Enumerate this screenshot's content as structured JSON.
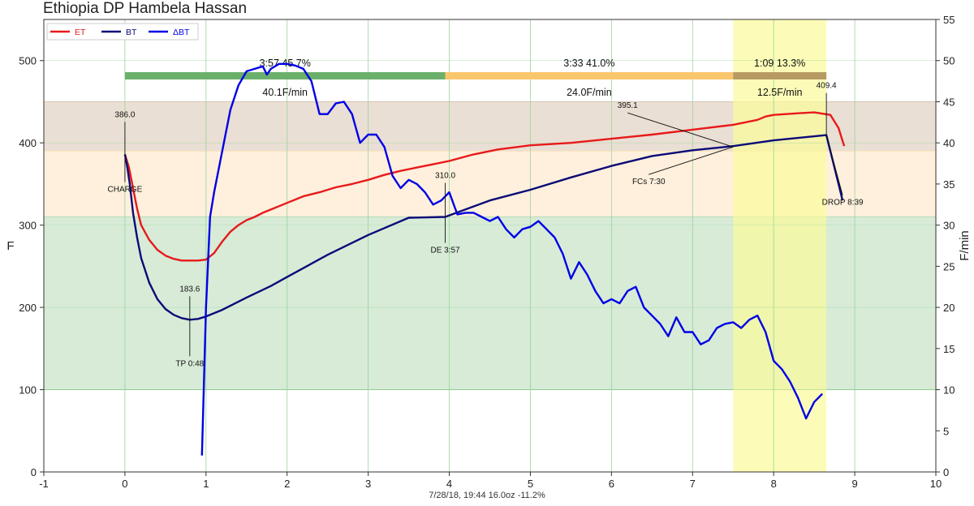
{
  "title": "Ethiopia DP Hambela Hassan",
  "subtitle": "7/28/18, 19:44   16.0oz   -11.2%",
  "colors": {
    "et": "#e8191b",
    "bt": "#0a0a78",
    "dbt": "#0000e6",
    "zone_top": "#d8c4b0",
    "zone_mid": "#fde3bf",
    "zone_low": "#b6dbb6",
    "phase_dry": "#6ab06a",
    "phase_mid": "#f9c66b",
    "phase_dev": "#b79a63",
    "dev_highlight": "#fbfb9a"
  },
  "chart_data": {
    "type": "line",
    "title": "Ethiopia DP Hambela Hassan",
    "xlabel": "",
    "ylabel": "F",
    "y2label": "F/min",
    "xlim": [
      -1,
      10
    ],
    "ylim": [
      0,
      550
    ],
    "y2lim": [
      0,
      55
    ],
    "xticks": [
      "-1",
      "0",
      "1",
      "2",
      "3",
      "4",
      "5",
      "6",
      "7",
      "8",
      "9",
      "10"
    ],
    "yticks": [
      "0",
      "100",
      "200",
      "300",
      "400",
      "500"
    ],
    "y2ticks": [
      "0",
      "5",
      "10",
      "15",
      "20",
      "25",
      "30",
      "35",
      "40",
      "45",
      "50",
      "55"
    ],
    "grid": true,
    "legend_position": "top-left",
    "legend": [
      "ET",
      "BT",
      "ΔBT"
    ],
    "zones": [
      {
        "from": 390,
        "to": 450,
        "color": "zone_top"
      },
      {
        "from": 310,
        "to": 390,
        "color": "zone_mid"
      },
      {
        "from": 100,
        "to": 310,
        "color": "zone_low"
      }
    ],
    "development_window": [
      7.5,
      8.65
    ],
    "series": [
      {
        "name": "ET",
        "axis": "left",
        "x": [
          0,
          0.05,
          0.1,
          0.15,
          0.2,
          0.3,
          0.4,
          0.5,
          0.6,
          0.7,
          0.8,
          0.9,
          1.0,
          1.1,
          1.2,
          1.3,
          1.4,
          1.5,
          1.6,
          1.7,
          1.8,
          1.9,
          2.0,
          2.2,
          2.4,
          2.6,
          2.8,
          3.0,
          3.2,
          3.4,
          3.6,
          3.8,
          4.0,
          4.3,
          4.6,
          5.0,
          5.5,
          6.0,
          6.5,
          7.0,
          7.5,
          7.8,
          7.9,
          8.0,
          8.3,
          8.5,
          8.7,
          8.8,
          8.87
        ],
        "values": [
          386,
          370,
          345,
          320,
          300,
          282,
          270,
          263,
          259,
          257,
          257,
          257,
          258,
          266,
          280,
          292,
          300,
          306,
          310,
          315,
          319,
          323,
          327,
          335,
          340,
          346,
          350,
          355,
          361,
          366,
          370,
          374,
          378,
          386,
          392,
          397,
          400,
          405,
          410,
          416,
          422,
          428,
          432,
          434,
          436,
          437,
          434,
          418,
          396
        ]
      },
      {
        "name": "BT",
        "axis": "left",
        "x": [
          0,
          0.03,
          0.06,
          0.1,
          0.15,
          0.2,
          0.3,
          0.4,
          0.5,
          0.6,
          0.7,
          0.8,
          0.9,
          1.0,
          1.2,
          1.5,
          1.8,
          2.0,
          2.5,
          3.0,
          3.5,
          3.95,
          4.5,
          5.0,
          5.5,
          6.0,
          6.5,
          7.0,
          7.5,
          8.0,
          8.3,
          8.65,
          8.75,
          8.85
        ],
        "values": [
          386,
          370,
          350,
          315,
          285,
          260,
          230,
          210,
          198,
          191,
          187,
          185,
          186,
          189,
          197,
          212,
          226,
          237,
          264,
          288,
          309,
          310,
          330,
          343,
          358,
          372,
          384,
          391,
          396,
          403,
          406,
          409.4,
          370,
          330
        ]
      },
      {
        "name": "ΔBT",
        "axis": "right",
        "x": [
          0.95,
          1.0,
          1.05,
          1.1,
          1.2,
          1.3,
          1.4,
          1.5,
          1.6,
          1.7,
          1.75,
          1.8,
          1.9,
          2.0,
          2.1,
          2.2,
          2.3,
          2.4,
          2.5,
          2.6,
          2.7,
          2.8,
          2.9,
          3.0,
          3.1,
          3.2,
          3.3,
          3.4,
          3.5,
          3.6,
          3.7,
          3.8,
          3.9,
          4.0,
          4.1,
          4.2,
          4.3,
          4.4,
          4.5,
          4.6,
          4.7,
          4.8,
          4.9,
          5.0,
          5.1,
          5.2,
          5.3,
          5.4,
          5.5,
          5.6,
          5.7,
          5.8,
          5.9,
          6.0,
          6.1,
          6.2,
          6.3,
          6.4,
          6.5,
          6.6,
          6.7,
          6.8,
          6.9,
          7.0,
          7.1,
          7.2,
          7.3,
          7.4,
          7.5,
          7.6,
          7.7,
          7.8,
          7.9,
          8.0,
          8.1,
          8.2,
          8.3,
          8.4,
          8.5,
          8.6
        ],
        "values": [
          2,
          20,
          31,
          34,
          39,
          44,
          47,
          48.7,
          49,
          49.3,
          48.3,
          49,
          49.6,
          49.6,
          49.4,
          49,
          47.5,
          43.5,
          43.5,
          44.8,
          45,
          43.5,
          40,
          41,
          41,
          39.5,
          36,
          34.5,
          35.5,
          35,
          34,
          32.5,
          33,
          34,
          31.3,
          31.5,
          31.5,
          31,
          30.5,
          31,
          29.5,
          28.5,
          29.5,
          29.8,
          30.5,
          29.5,
          28.5,
          26.5,
          23.5,
          25.5,
          24,
          22,
          20.5,
          21,
          20.5,
          22,
          22.5,
          20,
          19,
          18,
          16.5,
          18.8,
          17,
          17,
          15.5,
          16,
          17.5,
          18,
          18.2,
          17.5,
          18.5,
          19,
          17,
          13.5,
          12.5,
          11,
          9,
          6.5,
          8.5,
          9.5
        ]
      }
    ],
    "phases": [
      {
        "label": "3:57  45.7%",
        "rate": "40.1F/min",
        "x_start": 0,
        "x_end": 3.95,
        "color": "phase_dry"
      },
      {
        "label": "3:33  41.0%",
        "rate": "24.0F/min",
        "x_start": 3.95,
        "x_end": 7.5,
        "color": "phase_mid"
      },
      {
        "label": "1:09  13.3%",
        "rate": "12.5F/min",
        "x_start": 7.5,
        "x_end": 8.65,
        "color": "phase_dev"
      }
    ],
    "phase_bar_y": 482,
    "annotations": [
      {
        "label": "386.0",
        "sublabel": "CHARGE",
        "x": 0,
        "y": 386
      },
      {
        "label": "183.6",
        "sublabel": "TP 0:48",
        "x": 0.8,
        "y": 184
      },
      {
        "label": "310.0",
        "sublabel": "DE 3:57",
        "x": 3.95,
        "y": 310
      },
      {
        "label": "395.1",
        "sublabel": "FCs 7:30",
        "x": 7.5,
        "y": 395.1
      },
      {
        "label": "409.4",
        "sublabel": "DROP 8:39",
        "x": 8.65,
        "y": 409.4
      }
    ]
  }
}
